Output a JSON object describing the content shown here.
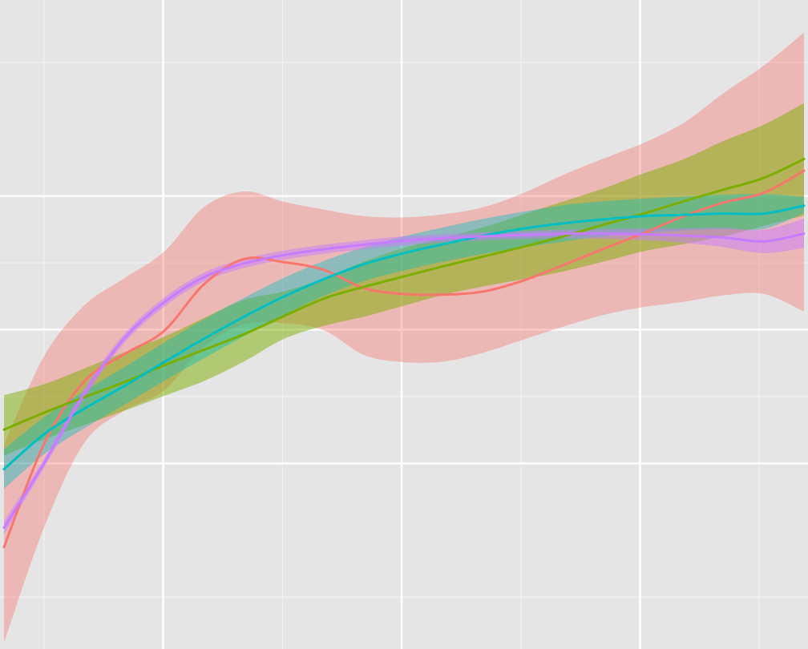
{
  "chart_data": {
    "type": "line",
    "title": "",
    "xlabel": "",
    "ylabel": "",
    "xlim": [
      0,
      1
    ],
    "ylim": [
      0,
      1
    ],
    "grid": true,
    "legend": "none",
    "background": "#E5E5E5",
    "grid_major_color": "#FFFFFF",
    "grid_minor_color": "#F2F2F2",
    "x_major_ticks": [
      0.199,
      0.497,
      0.795
    ],
    "x_minor_ticks": [
      0.05,
      0.348,
      0.646,
      0.944
    ],
    "y_major_ticks": [
      0.286,
      0.492,
      0.698
    ],
    "y_minor_ticks": [
      0.0802,
      0.0802,
      0.389,
      0.595,
      0.904
    ],
    "series": [
      {
        "color": "#F8766D",
        "opacity": 0.4,
        "x": [
          0.0,
          0.05,
          0.1,
          0.15,
          0.2,
          0.25,
          0.3,
          0.35,
          0.4,
          0.45,
          0.5,
          0.55,
          0.6,
          0.65,
          0.7,
          0.75,
          0.8,
          0.85,
          0.9,
          0.95,
          1.0
        ],
        "y": [
          0.157,
          0.316,
          0.412,
          0.454,
          0.49,
          0.562,
          0.601,
          0.596,
          0.584,
          0.556,
          0.547,
          0.546,
          0.551,
          0.568,
          0.592,
          0.617,
          0.641,
          0.667,
          0.688,
          0.703,
          0.737
        ],
        "lower": [
          0.01,
          0.187,
          0.317,
          0.367,
          0.398,
          0.466,
          0.5,
          0.502,
          0.491,
          0.453,
          0.442,
          0.443,
          0.457,
          0.477,
          0.497,
          0.515,
          0.527,
          0.535,
          0.545,
          0.547,
          0.52
        ],
        "upper": [
          0.315,
          0.451,
          0.529,
          0.571,
          0.612,
          0.681,
          0.705,
          0.689,
          0.677,
          0.667,
          0.665,
          0.67,
          0.681,
          0.703,
          0.731,
          0.756,
          0.78,
          0.811,
          0.857,
          0.899,
          0.95
        ]
      },
      {
        "color": "#7CAE00",
        "opacity": 0.5,
        "x": [
          0.0,
          0.05,
          0.1,
          0.15,
          0.2,
          0.25,
          0.3,
          0.35,
          0.4,
          0.45,
          0.5,
          0.55,
          0.6,
          0.65,
          0.7,
          0.75,
          0.8,
          0.85,
          0.9,
          0.95,
          1.0
        ],
        "y": [
          0.338,
          0.364,
          0.388,
          0.411,
          0.437,
          0.461,
          0.485,
          0.513,
          0.54,
          0.558,
          0.574,
          0.59,
          0.605,
          0.62,
          0.636,
          0.654,
          0.671,
          0.69,
          0.708,
          0.726,
          0.755
        ],
        "lower": [
          0.298,
          0.323,
          0.345,
          0.367,
          0.39,
          0.413,
          0.443,
          0.478,
          0.498,
          0.512,
          0.529,
          0.546,
          0.559,
          0.57,
          0.582,
          0.597,
          0.613,
          0.624,
          0.636,
          0.652,
          0.668
        ],
        "upper": [
          0.391,
          0.408,
          0.432,
          0.457,
          0.481,
          0.51,
          0.538,
          0.551,
          0.571,
          0.597,
          0.618,
          0.634,
          0.65,
          0.67,
          0.69,
          0.71,
          0.733,
          0.755,
          0.783,
          0.808,
          0.841
        ]
      },
      {
        "color": "#00BFC4",
        "opacity": 0.4,
        "x": [
          0.0,
          0.05,
          0.1,
          0.15,
          0.2,
          0.25,
          0.3,
          0.35,
          0.4,
          0.45,
          0.5,
          0.55,
          0.6,
          0.65,
          0.7,
          0.75,
          0.8,
          0.85,
          0.9,
          0.95,
          1.0
        ],
        "y": [
          0.277,
          0.331,
          0.37,
          0.405,
          0.442,
          0.478,
          0.512,
          0.543,
          0.57,
          0.593,
          0.61,
          0.624,
          0.637,
          0.648,
          0.656,
          0.662,
          0.667,
          0.669,
          0.671,
          0.671,
          0.683
        ],
        "lower": [
          0.247,
          0.3,
          0.34,
          0.376,
          0.413,
          0.448,
          0.482,
          0.515,
          0.544,
          0.567,
          0.583,
          0.597,
          0.609,
          0.619,
          0.628,
          0.636,
          0.641,
          0.645,
          0.647,
          0.647,
          0.672
        ],
        "upper": [
          0.308,
          0.357,
          0.397,
          0.434,
          0.472,
          0.508,
          0.541,
          0.572,
          0.598,
          0.619,
          0.636,
          0.65,
          0.663,
          0.674,
          0.684,
          0.69,
          0.694,
          0.697,
          0.7,
          0.701,
          0.697
        ]
      },
      {
        "color": "#C77CFF",
        "opacity": 0.5,
        "x": [
          0.0,
          0.05,
          0.1,
          0.15,
          0.2,
          0.25,
          0.3,
          0.35,
          0.4,
          0.45,
          0.5,
          0.55,
          0.6,
          0.65,
          0.7,
          0.75,
          0.8,
          0.85,
          0.9,
          0.95,
          1.0
        ],
        "y": [
          0.187,
          0.286,
          0.393,
          0.478,
          0.534,
          0.573,
          0.594,
          0.607,
          0.616,
          0.623,
          0.629,
          0.633,
          0.636,
          0.638,
          0.64,
          0.64,
          0.639,
          0.637,
          0.634,
          0.628,
          0.64
        ],
        "lower": [
          0.177,
          0.279,
          0.385,
          0.471,
          0.527,
          0.566,
          0.587,
          0.6,
          0.609,
          0.616,
          0.622,
          0.627,
          0.63,
          0.632,
          0.633,
          0.632,
          0.63,
          0.626,
          0.619,
          0.61,
          0.618
        ],
        "upper": [
          0.197,
          0.293,
          0.401,
          0.485,
          0.541,
          0.58,
          0.601,
          0.614,
          0.623,
          0.63,
          0.636,
          0.639,
          0.642,
          0.644,
          0.646,
          0.647,
          0.648,
          0.648,
          0.649,
          0.646,
          0.663
        ]
      }
    ]
  }
}
